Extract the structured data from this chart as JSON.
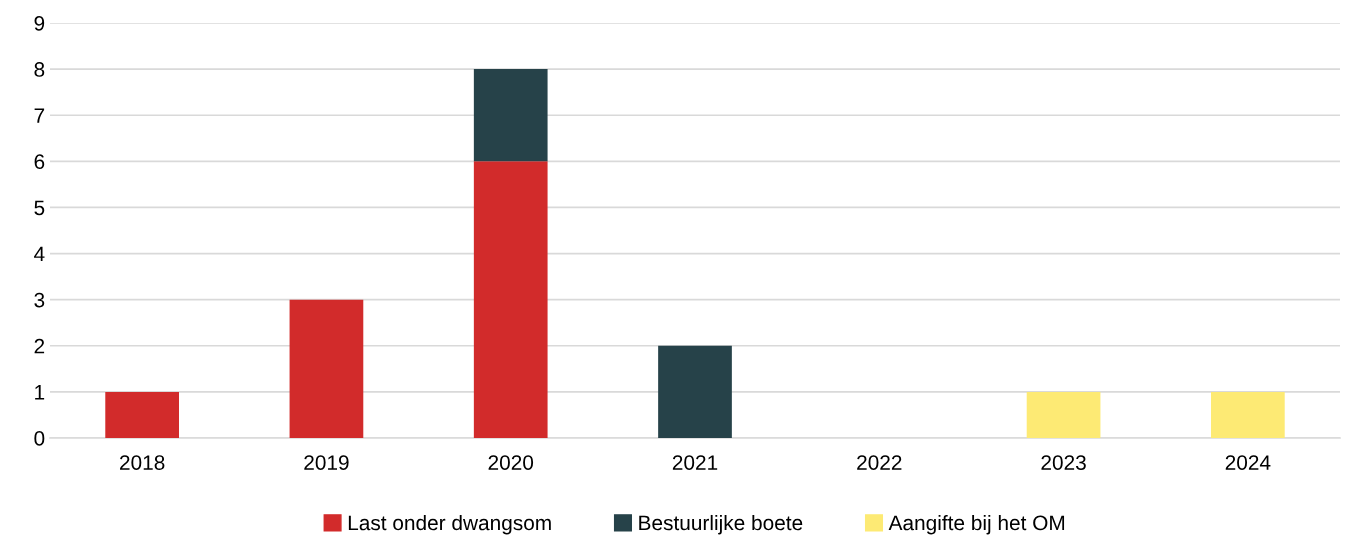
{
  "chart_data": {
    "type": "bar",
    "stacked": true,
    "categories": [
      "2018",
      "2019",
      "2020",
      "2021",
      "2022",
      "2023",
      "2024"
    ],
    "series": [
      {
        "name": "Last onder dwangsom",
        "color": "#d22b2b",
        "values": [
          1,
          3,
          6,
          null,
          null,
          null,
          null
        ]
      },
      {
        "name": "Bestuurlijke boete",
        "color": "#264249",
        "values": [
          null,
          null,
          2,
          2,
          null,
          null,
          null
        ]
      },
      {
        "name": "Aangifte bij het OM",
        "color": "#fdea74",
        "values": [
          null,
          null,
          null,
          null,
          null,
          1,
          1
        ]
      }
    ],
    "ylim": [
      0,
      9
    ],
    "yticks": [
      0,
      1,
      2,
      3,
      4,
      5,
      6,
      7,
      8,
      9
    ],
    "grid": "y",
    "legend": "bottom"
  }
}
